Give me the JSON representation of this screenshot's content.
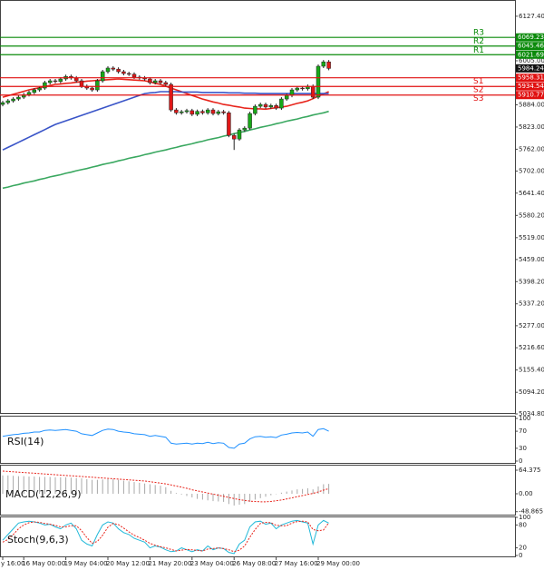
{
  "chart_data": [
    {
      "type": "candlestick",
      "categories": [
        "y 16:00",
        null,
        null,
        null,
        "16 May 00:00",
        null,
        null,
        null,
        null,
        null,
        null,
        null,
        "19 May 04:00",
        null,
        null,
        null,
        null,
        null,
        null,
        null,
        "20 May 12:00",
        null,
        null,
        null,
        null,
        null,
        null,
        null,
        "21 May 20:00",
        null,
        null,
        null,
        null,
        null,
        null,
        null,
        "23 May 04:00",
        null,
        null,
        null,
        null,
        null,
        null,
        null,
        "26 May 08:00",
        null,
        null,
        null,
        null,
        null,
        null,
        null,
        "27 May 16:00",
        null,
        null,
        null,
        null,
        null,
        null,
        null,
        "29 May 00:00",
        null,
        null
      ],
      "open": [
        5885,
        5890,
        5895,
        5900,
        5905,
        5912,
        5918,
        5925,
        5930,
        5945,
        5950,
        5948,
        5955,
        5962,
        5958,
        5950,
        5935,
        5930,
        5925,
        5950,
        5975,
        5985,
        5982,
        5975,
        5970,
        5968,
        5960,
        5958,
        5955,
        5945,
        5950,
        5945,
        5940,
        5870,
        5862,
        5865,
        5868,
        5858,
        5866,
        5862,
        5870,
        5860,
        5865,
        5862,
        5800,
        5790,
        5815,
        5820,
        5860,
        5880,
        5885,
        5878,
        5882,
        5875,
        5900,
        5910,
        5925,
        5930,
        5928,
        5935,
        5905,
        5990,
        6002
      ],
      "high": [
        5895,
        5900,
        5905,
        5910,
        5917,
        5923,
        5930,
        5935,
        5950,
        5955,
        5955,
        5960,
        5967,
        5967,
        5963,
        5955,
        5940,
        5935,
        5955,
        5980,
        5990,
        5990,
        5987,
        5980,
        5975,
        5973,
        5965,
        5963,
        5960,
        5955,
        5955,
        5950,
        5945,
        5875,
        5870,
        5873,
        5873,
        5871,
        5871,
        5875,
        5875,
        5870,
        5870,
        5867,
        5805,
        5820,
        5825,
        5865,
        5885,
        5890,
        5890,
        5887,
        5887,
        5905,
        5915,
        5930,
        5935,
        5935,
        5940,
        5940,
        5995,
        6007,
        6007
      ],
      "low": [
        5880,
        5885,
        5890,
        5895,
        5900,
        5907,
        5913,
        5920,
        5925,
        5940,
        5943,
        5943,
        5950,
        5953,
        5945,
        5930,
        5925,
        5920,
        5920,
        5945,
        5970,
        5977,
        5970,
        5965,
        5963,
        5955,
        5953,
        5950,
        5940,
        5940,
        5940,
        5935,
        5865,
        5857,
        5857,
        5860,
        5853,
        5853,
        5857,
        5857,
        5855,
        5855,
        5857,
        5795,
        5760,
        5785,
        5810,
        5815,
        5855,
        5875,
        5873,
        5873,
        5870,
        5870,
        5895,
        5905,
        5920,
        5923,
        5923,
        5900,
        5900,
        5985,
        5979
      ],
      "close": [
        5890,
        5895,
        5900,
        5905,
        5912,
        5918,
        5925,
        5930,
        5945,
        5950,
        5948,
        5955,
        5962,
        5958,
        5950,
        5935,
        5930,
        5925,
        5950,
        5975,
        5985,
        5982,
        5975,
        5970,
        5968,
        5960,
        5958,
        5955,
        5945,
        5950,
        5945,
        5940,
        5870,
        5862,
        5865,
        5868,
        5858,
        5866,
        5862,
        5870,
        5860,
        5865,
        5862,
        5800,
        5790,
        5815,
        5820,
        5860,
        5880,
        5885,
        5878,
        5882,
        5875,
        5900,
        5910,
        5925,
        5930,
        5928,
        5935,
        5905,
        5990,
        6002,
        5984
      ],
      "up_color": "#18a818",
      "down_color": "#e01818",
      "lines": [
        {
          "color": "#e8251c",
          "values": [
            5905,
            5909,
            5913,
            5917,
            5921,
            5925,
            5928,
            5931,
            5934,
            5937,
            5940,
            5941,
            5943,
            5944,
            5946,
            5947,
            5949,
            5950,
            5951,
            5952,
            5953,
            5954,
            5955,
            5954,
            5953,
            5952,
            5951,
            5950,
            5947,
            5943,
            5940,
            5935,
            5930,
            5925,
            5920,
            5915,
            5910,
            5905,
            5900,
            5896,
            5892,
            5889,
            5885,
            5883,
            5880,
            5878,
            5875,
            5874,
            5873,
            5873,
            5872,
            5874,
            5876,
            5878,
            5880,
            5884,
            5888,
            5891,
            5895,
            5901,
            5908,
            5914,
            5920
          ]
        },
        {
          "color": "#3a55c8",
          "values": [
            5760,
            5767,
            5774,
            5781,
            5788,
            5795,
            5802,
            5809,
            5816,
            5823,
            5830,
            5835,
            5840,
            5845,
            5850,
            5855,
            5860,
            5865,
            5870,
            5875,
            5880,
            5885,
            5890,
            5895,
            5900,
            5905,
            5910,
            5915,
            5917,
            5918,
            5920,
            5920,
            5920,
            5920,
            5919,
            5919,
            5919,
            5919,
            5918,
            5918,
            5918,
            5918,
            5918,
            5917,
            5917,
            5917,
            5916,
            5916,
            5916,
            5915,
            5915,
            5915,
            5915,
            5915,
            5915,
            5915,
            5915,
            5915,
            5915,
            5915,
            5915,
            5915,
            5915
          ]
        },
        {
          "color": "#3aa860",
          "values": [
            5655,
            5658,
            5662,
            5665,
            5669,
            5672,
            5675,
            5679,
            5682,
            5686,
            5689,
            5692,
            5696,
            5699,
            5703,
            5706,
            5709,
            5713,
            5716,
            5720,
            5723,
            5726,
            5730,
            5733,
            5737,
            5740,
            5743,
            5747,
            5750,
            5754,
            5757,
            5760,
            5764,
            5767,
            5771,
            5774,
            5777,
            5781,
            5784,
            5788,
            5791,
            5794,
            5798,
            5801,
            5805,
            5808,
            5811,
            5815,
            5818,
            5822,
            5825,
            5828,
            5832,
            5835,
            5839,
            5842,
            5845,
            5849,
            5852,
            5856,
            5859,
            5862,
            5866
          ]
        }
      ],
      "levels": [
        {
          "label": "R3",
          "value": 6069.23,
          "color": "#0a8a0a"
        },
        {
          "label": "R2",
          "value": 6045.46,
          "color": "#0a8a0a"
        },
        {
          "label": "R1",
          "value": 6021.69,
          "color": "#0a8a0a"
        },
        {
          "label": "S1",
          "value": 5958.31,
          "color": "#e01010"
        },
        {
          "label": "S2",
          "value": 5934.54,
          "color": "#e01010"
        },
        {
          "label": "S3",
          "value": 5910.77,
          "color": "#e01010"
        }
      ],
      "last_price": 5984.24,
      "ylim": [
        5034.8,
        6172
      ],
      "yticks": [
        {
          "value": 6127.4,
          "label": "6127.40"
        },
        {
          "value": 6005,
          "label": "6005.00"
        },
        {
          "value": 5884,
          "label": "5884.00"
        },
        {
          "value": 5823,
          "label": "5823.00"
        },
        {
          "value": 5762,
          "label": "5762.00"
        },
        {
          "value": 5702,
          "label": "5702.00"
        },
        {
          "value": 5641.4,
          "label": "5641.40"
        },
        {
          "value": 5580.2,
          "label": "5580.20"
        },
        {
          "value": 5519,
          "label": "5519.00"
        },
        {
          "value": 5459,
          "label": "5459.00"
        },
        {
          "value": 5398.2,
          "label": "5398.20"
        },
        {
          "value": 5337.2,
          "label": "5337.20"
        },
        {
          "value": 5277,
          "label": "5277.00"
        },
        {
          "value": 5216.6,
          "label": "5216.60"
        },
        {
          "value": 5155.4,
          "label": "5155.40"
        },
        {
          "value": 5094.2,
          "label": "5094.20"
        },
        {
          "value": 5034.8,
          "label": "5034.80"
        }
      ]
    },
    {
      "type": "line",
      "label": "RSI(14)",
      "color": "#1e90ff",
      "values": [
        58,
        60,
        62,
        63,
        65,
        66,
        68,
        68,
        72,
        73,
        72,
        73,
        74,
        72,
        70,
        64,
        62,
        60,
        66,
        72,
        75,
        74,
        70,
        68,
        67,
        64,
        63,
        62,
        58,
        60,
        58,
        56,
        42,
        40,
        41,
        42,
        40,
        42,
        41,
        44,
        41,
        43,
        42,
        32,
        30,
        40,
        42,
        52,
        57,
        58,
        56,
        57,
        55,
        61,
        63,
        66,
        67,
        66,
        68,
        58,
        74,
        76,
        70
      ],
      "ylim": [
        0,
        100
      ],
      "yticks": [
        100,
        70,
        30,
        0
      ]
    },
    {
      "type": "macd",
      "label": "MACD(12,26,9)",
      "histogram_color": "#a8a8a8",
      "signal_color": "#e8251c",
      "histogram": [
        50,
        50,
        49,
        48,
        48,
        47,
        47,
        46,
        46,
        46,
        45,
        45,
        45,
        44,
        43,
        42,
        40,
        38,
        38,
        39,
        40,
        40,
        38,
        36,
        34,
        32,
        30,
        28,
        26,
        24,
        22,
        18,
        8,
        2,
        -2,
        -6,
        -10,
        -14,
        -16,
        -18,
        -20,
        -21,
        -22,
        -28,
        -32,
        -30,
        -28,
        -22,
        -16,
        -12,
        -8,
        -4,
        -1,
        3,
        6,
        9,
        12,
        13,
        15,
        12,
        20,
        26,
        27
      ],
      "signal": [
        62,
        61,
        60,
        59,
        58,
        57,
        56,
        55,
        54,
        53,
        52,
        51,
        50,
        49,
        48,
        47,
        46,
        45,
        44,
        43,
        42,
        41,
        40,
        39,
        38,
        37,
        36,
        35,
        33,
        31,
        29,
        27,
        24,
        21,
        18,
        15,
        11,
        8,
        5,
        2,
        -1,
        -4,
        -7,
        -10,
        -13,
        -16,
        -18,
        -20,
        -21,
        -22,
        -22,
        -21,
        -19,
        -17,
        -14,
        -11,
        -8,
        -5,
        -2,
        1,
        5,
        10,
        14
      ],
      "ylim": [
        -59.4,
        76.8
      ],
      "yticks": [
        64.375,
        {
          "value": 0,
          "label": "0.00"
        },
        -48.865
      ]
    },
    {
      "type": "stochastic",
      "label": "Stoch(9,6,3)",
      "k_color": "#20b8d8",
      "d_color": "#e8251c",
      "k": [
        40,
        55,
        70,
        85,
        88,
        90,
        88,
        85,
        80,
        82,
        75,
        70,
        80,
        85,
        70,
        40,
        30,
        25,
        55,
        80,
        88,
        85,
        70,
        60,
        55,
        45,
        40,
        35,
        20,
        25,
        22,
        15,
        10,
        12,
        20,
        15,
        10,
        15,
        12,
        25,
        15,
        20,
        18,
        8,
        5,
        30,
        40,
        75,
        88,
        90,
        82,
        85,
        70,
        80,
        85,
        90,
        92,
        88,
        85,
        30,
        80,
        92,
        85
      ],
      "d": [
        35,
        42,
        55,
        70,
        80,
        86,
        88,
        87,
        84,
        82,
        79,
        75,
        75,
        78,
        78,
        65,
        47,
        32,
        37,
        53,
        74,
        84,
        81,
        72,
        62,
        53,
        47,
        40,
        32,
        27,
        23,
        20,
        16,
        12,
        14,
        16,
        15,
        13,
        12,
        17,
        18,
        20,
        18,
        15,
        10,
        14,
        25,
        48,
        68,
        84,
        87,
        86,
        79,
        78,
        78,
        85,
        89,
        90,
        88,
        68,
        65,
        67,
        86
      ],
      "ylim": [
        0,
        100
      ],
      "yticks": [
        100,
        80,
        20,
        0
      ]
    }
  ]
}
